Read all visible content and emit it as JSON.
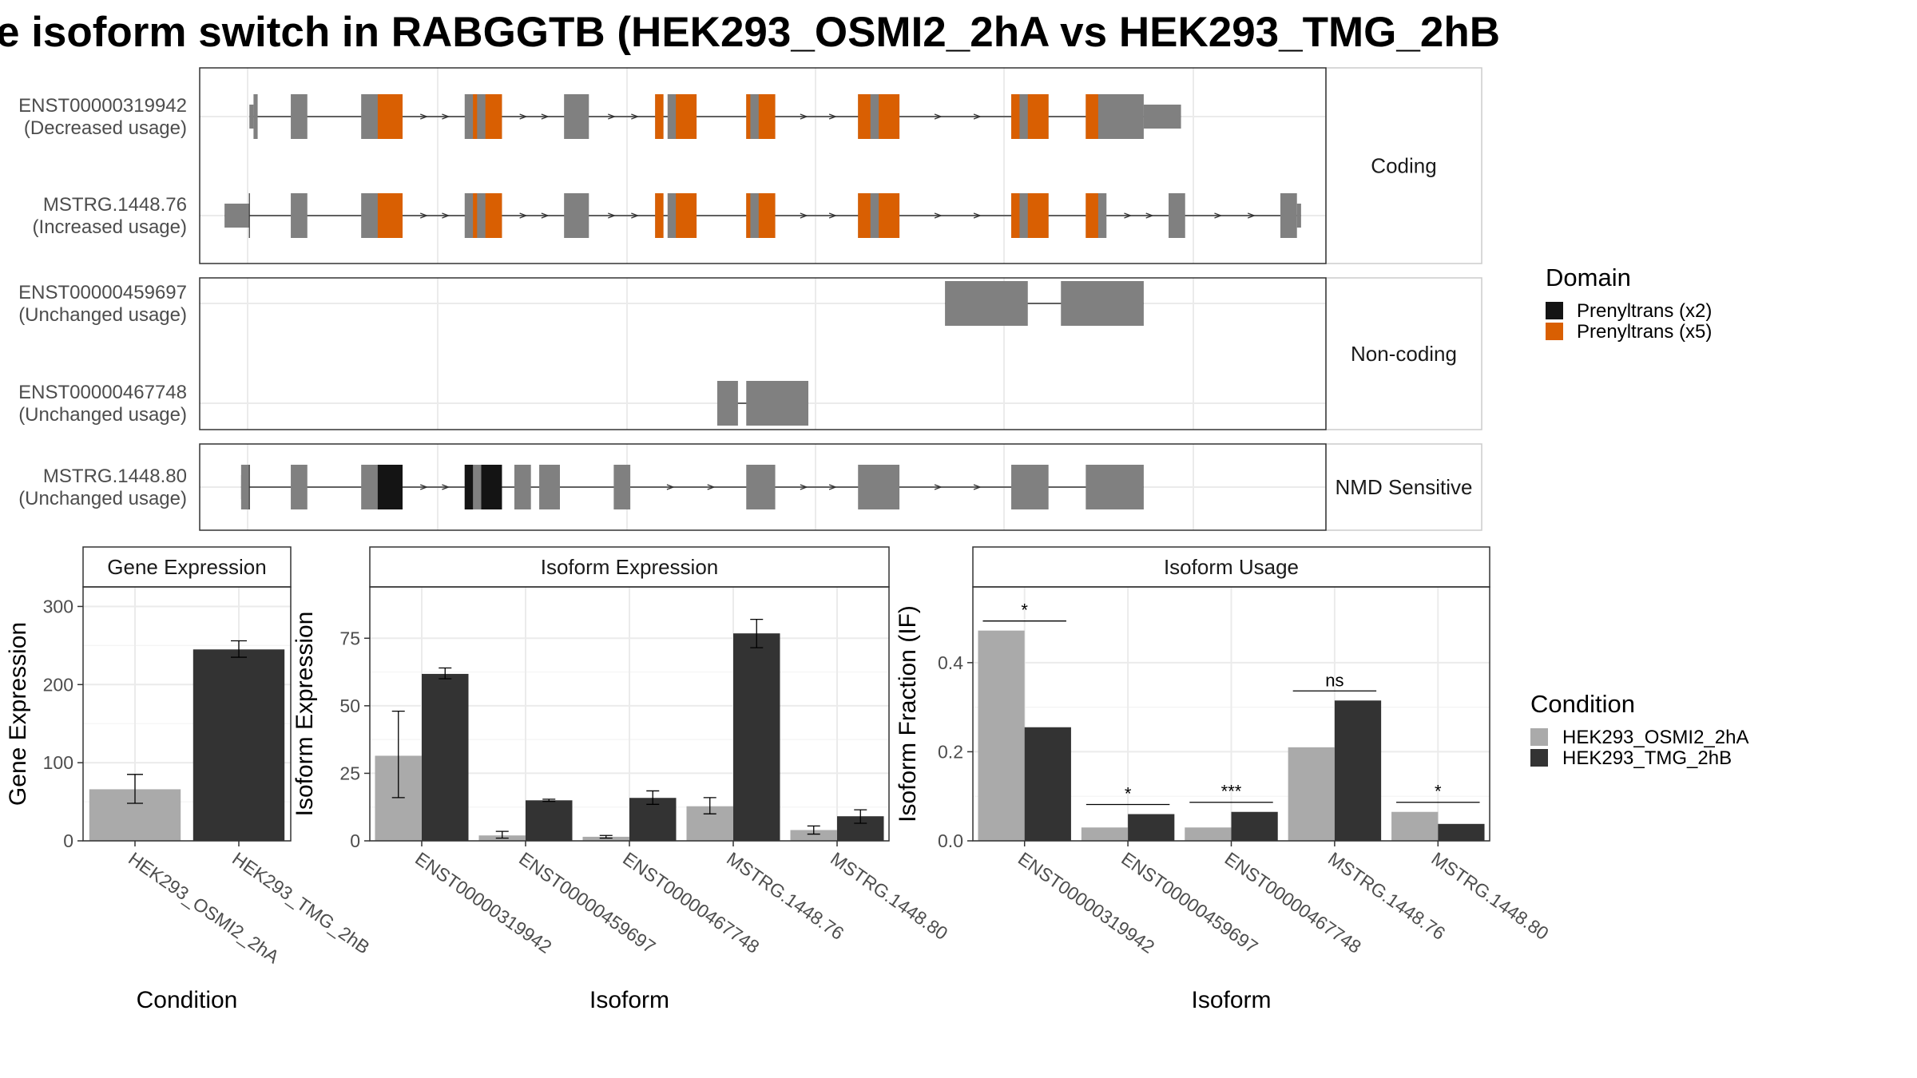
{
  "title": "e isoform switch in RABGGTB (HEK293_OSMI2_2hA vs HEK293_TMG_2hB",
  "colors": {
    "exon": "#808080",
    "domain_x2": "#141414",
    "domain_x5": "#d95f02",
    "cond_a": "#aaaaaa",
    "cond_b": "#333333",
    "strip_bg": "#ffffff",
    "grid": "#ebebeb"
  },
  "structure": {
    "facets": [
      {
        "label": "Coding",
        "transcripts": [
          {
            "id": "ENST00000319942",
            "usage": "(Decreased usage)",
            "exons": [
              [
                1.0,
                2.0
              ],
              [
                10.0,
                14.0
              ],
              [
                27.0,
                37.0
              ],
              [
                52.0,
                61.0
              ],
              [
                76.0,
                82.0
              ],
              [
                98.0,
                100.0
              ],
              [
                101.0,
                108.0
              ],
              [
                120.0,
                127.0
              ],
              [
                147.0,
                157.0
              ],
              [
                184.0,
                193.0
              ],
              [
                202.0,
                216.0
              ]
            ],
            "utr": [
              [
                0.0,
                1.0
              ],
              [
                216.0,
                225.0
              ]
            ],
            "domains": [
              [
                "x5",
                31.0,
                37.0
              ],
              [
                "x5",
                54.0,
                55.0
              ],
              [
                "x5",
                57.0,
                61.0
              ],
              [
                "x5",
                98.0,
                100.0
              ],
              [
                "x5",
                103.0,
                108.0
              ],
              [
                "x5",
                120.0,
                121.0
              ],
              [
                "x5",
                123.0,
                127.0
              ],
              [
                "x5",
                147.0,
                150.0
              ],
              [
                "x5",
                152.0,
                157.0
              ],
              [
                "x5",
                184.0,
                186.0
              ],
              [
                "x5",
                188.0,
                193.0
              ],
              [
                "x5",
                202.0,
                205.0
              ]
            ]
          },
          {
            "id": "MSTRG.1448.76",
            "usage": "(Increased usage)",
            "exons": [
              [
                10.0,
                14.0
              ],
              [
                27.0,
                37.0
              ],
              [
                52.0,
                61.0
              ],
              [
                76.0,
                82.0
              ],
              [
                98.0,
                100.0
              ],
              [
                101.0,
                108.0
              ],
              [
                120.0,
                127.0
              ],
              [
                147.0,
                157.0
              ],
              [
                184.0,
                193.0
              ],
              [
                202.0,
                207.0
              ],
              [
                222.0,
                226.0
              ],
              [
                249.0,
                253.0
              ]
            ],
            "utr": [
              [
                -6.0,
                0.0
              ],
              [
                253.0,
                254.0
              ]
            ],
            "domains": [
              [
                "x5",
                31.0,
                37.0
              ],
              [
                "x5",
                54.0,
                55.0
              ],
              [
                "x5",
                57.0,
                61.0
              ],
              [
                "x5",
                98.0,
                100.0
              ],
              [
                "x5",
                103.0,
                108.0
              ],
              [
                "x5",
                120.0,
                121.0
              ],
              [
                "x5",
                123.0,
                127.0
              ],
              [
                "x5",
                147.0,
                150.0
              ],
              [
                "x5",
                152.0,
                157.0
              ],
              [
                "x5",
                184.0,
                186.0
              ],
              [
                "x5",
                188.0,
                193.0
              ],
              [
                "x5",
                202.0,
                205.0
              ]
            ]
          }
        ]
      },
      {
        "label": "Non-coding",
        "transcripts": [
          {
            "id": "ENST00000459697",
            "usage": "(Unchanged usage)",
            "exons": [
              [
                168.0,
                188.0
              ],
              [
                196.0,
                216.0
              ]
            ],
            "utr": [],
            "domains": []
          },
          {
            "id": "ENST00000467748",
            "usage": "(Unchanged usage)",
            "exons": [
              [
                113.0,
                118.0
              ],
              [
                120.0,
                135.0
              ]
            ],
            "utr": [],
            "domains": []
          }
        ]
      },
      {
        "label": "NMD Sensitive",
        "transcripts": [
          {
            "id": "MSTRG.1448.80",
            "usage": "(Unchanged usage)",
            "exons": [
              [
                -2.0,
                0.0
              ],
              [
                10.0,
                14.0
              ],
              [
                27.0,
                37.0
              ],
              [
                52.0,
                61.0
              ],
              [
                64.0,
                68.0
              ],
              [
                70.0,
                75.0
              ],
              [
                88.0,
                92.0
              ],
              [
                120.0,
                127.0
              ],
              [
                147.0,
                157.0
              ],
              [
                184.0,
                193.0
              ],
              [
                202.0,
                216.0
              ]
            ],
            "utr": [
              [
                -2.0,
                0.0
              ]
            ],
            "domains": [
              [
                "x2",
                31.0,
                37.0
              ],
              [
                "x2",
                52.0,
                54.0
              ],
              [
                "x2",
                56.0,
                61.0
              ]
            ]
          }
        ]
      }
    ]
  },
  "legend_domain": {
    "title": "Domain",
    "items": [
      {
        "label": "Prenyltrans (x2)",
        "color": "#141414"
      },
      {
        "label": "Prenyltrans (x5)",
        "color": "#d95f02"
      }
    ]
  },
  "legend_condition": {
    "title": "Condition",
    "items": [
      {
        "label": "HEK293_OSMI2_2hA",
        "color": "#aaaaaa"
      },
      {
        "label": "HEK293_TMG_2hB",
        "color": "#333333"
      }
    ]
  },
  "chart_data": [
    {
      "type": "bar",
      "title": "Gene Expression",
      "xlabel": "Condition",
      "ylabel": "Gene Expression",
      "ylim": [
        0,
        325
      ],
      "yticks": [
        0,
        100,
        200,
        300
      ],
      "categories": [
        "HEK293_OSMI2_2hA",
        "HEK293_TMG_2hB"
      ],
      "values": [
        66,
        245
      ],
      "errors": [
        [
          48,
          85
        ],
        [
          235,
          256
        ]
      ]
    },
    {
      "type": "bar",
      "title": "Isoform Expression",
      "xlabel": "Isoform",
      "ylabel": "Isoform Expression",
      "ylim": [
        0,
        94
      ],
      "yticks": [
        0,
        25,
        50,
        75
      ],
      "categories": [
        "ENST00000319942",
        "ENST00000459697",
        "ENST00000467748",
        "MSTRG.1448.76",
        "MSTRG.1448.80"
      ],
      "series": [
        {
          "name": "HEK293_OSMI2_2hA",
          "values": [
            31.5,
            2.0,
            1.5,
            12.8,
            4.0
          ],
          "errors": [
            [
              16,
              48
            ],
            [
              1,
              3.5
            ],
            [
              1,
              2
            ],
            [
              10,
              16
            ],
            [
              2.5,
              5.5
            ]
          ]
        },
        {
          "name": "HEK293_TMG_2hB",
          "values": [
            61.8,
            15.0,
            15.9,
            76.8,
            9.1
          ],
          "errors": [
            [
              60,
              64
            ],
            [
              14.6,
              15.4
            ],
            [
              13.5,
              18.5
            ],
            [
              71.5,
              82
            ],
            [
              6.5,
              11.5
            ]
          ]
        }
      ]
    },
    {
      "type": "bar",
      "title": "Isoform Usage",
      "xlabel": "Isoform",
      "ylabel": "Isoform Fraction (IF)",
      "ylim": [
        0,
        0.57
      ],
      "yticks": [
        "0.0",
        "0.2",
        "0.4"
      ],
      "categories": [
        "ENST00000319942",
        "ENST00000459697",
        "ENST00000467748",
        "MSTRG.1448.76",
        "MSTRG.1448.80"
      ],
      "series": [
        {
          "name": "HEK293_OSMI2_2hA",
          "values": [
            0.472,
            0.03,
            0.03,
            0.21,
            0.065
          ]
        },
        {
          "name": "HEK293_TMG_2hB",
          "values": [
            0.255,
            0.06,
            0.065,
            0.315,
            0.038
          ]
        }
      ],
      "significance": [
        "*",
        "*",
        "***",
        "ns",
        "*"
      ]
    }
  ]
}
